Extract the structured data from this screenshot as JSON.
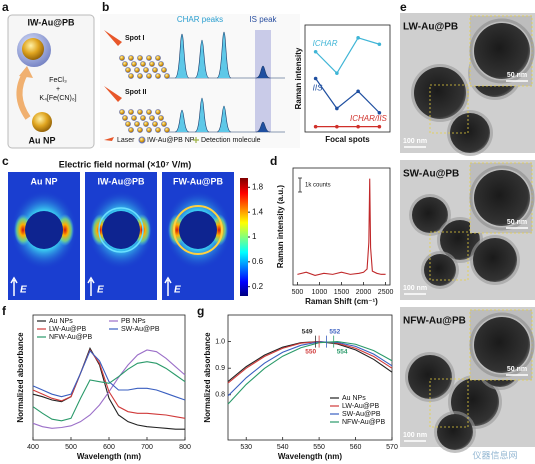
{
  "panel_labels": [
    "a",
    "b",
    "c",
    "d",
    "e",
    "f",
    "g"
  ],
  "a": {
    "top": "IW-Au@PB",
    "reagent1": "FeCl₃",
    "plus": "+",
    "reagent2": "K₄[Fe(CN)₆]",
    "bottom": "Au NP"
  },
  "b": {
    "char_peaks": "CHAR peaks",
    "is_peak": "IS peak",
    "spot1": "Spot I",
    "spot2": "Spot II",
    "legend": [
      "Laser",
      "IW-Au@PB NP",
      "Detection molecule"
    ]
  },
  "c": {
    "title": "Electric field normal (×10⁷ V/m)",
    "maps": [
      "Au NP",
      "IW-Au@PB",
      "FW-Au@PB"
    ],
    "field": "E"
  },
  "e": {
    "images": [
      {
        "label": "LW-Au@PB",
        "scale_inset": "50 nm",
        "scale_main": "100 nm"
      },
      {
        "label": "SW-Au@PB",
        "scale_inset": "50 nm",
        "scale_main": "100 nm"
      },
      {
        "label": "NFW-Au@PB",
        "scale_inset": "50 nm",
        "scale_main": "100 nm"
      }
    ]
  },
  "watermark": "仪器信息网",
  "chart_data": [
    {
      "type": "line",
      "y_label": "Raman intensity",
      "x_label": "Focal spots",
      "series": [
        {
          "name": "ICHAR",
          "color": "#3fb5d6",
          "values": [
            0.75,
            0.55,
            0.88,
            0.82
          ]
        },
        {
          "name": "IIS",
          "color": "#1f4fa0",
          "values": [
            0.5,
            0.22,
            0.38,
            0.18
          ]
        },
        {
          "name": "ICHAR/IIS",
          "color": "#d0302a",
          "values": [
            0.05,
            0.05,
            0.05,
            0.05
          ]
        }
      ],
      "ylim": [
        0,
        1
      ]
    },
    {
      "type": "colorbar",
      "ylim": [
        0.05,
        1.95
      ],
      "yticks": [
        1.8,
        1.4,
        1,
        0.6,
        0.2
      ]
    },
    {
      "type": "line",
      "y_label": "Raman intensity (a.u.)",
      "x_label": "Raman Shift (cm⁻¹)",
      "scale_bar": "1k counts",
      "x": [
        500,
        700,
        900,
        1100,
        1300,
        1500,
        1700,
        1900,
        2000,
        2080,
        2120,
        2140,
        2160,
        2200,
        2300,
        2400,
        2500
      ],
      "series": [
        {
          "color": "#c0282a",
          "values": [
            0.1,
            0.12,
            0.09,
            0.11,
            0.1,
            0.12,
            0.1,
            0.11,
            0.12,
            0.15,
            0.4,
            1.0,
            0.35,
            0.13,
            0.11,
            0.1,
            0.1
          ]
        }
      ],
      "xlim": [
        400,
        2600
      ],
      "xticks": [
        500,
        1000,
        1500,
        2000,
        2500
      ],
      "ylim": [
        0,
        1.1
      ]
    },
    {
      "type": "line",
      "y_label": "Normalized absorbance",
      "x_label": "Wavelength (nm)",
      "x": [
        400,
        425,
        450,
        475,
        500,
        525,
        550,
        575,
        600,
        625,
        650,
        675,
        700,
        725,
        750,
        775,
        800
      ],
      "series": [
        {
          "name": "Au NPs",
          "color": "#222222",
          "values": [
            0.45,
            0.42,
            0.38,
            0.36,
            0.42,
            0.7,
            1.0,
            0.8,
            0.4,
            0.2,
            0.12,
            0.08,
            0.06,
            0.05,
            0.04,
            0.03,
            0.03
          ]
        },
        {
          "name": "PB NPs",
          "color": "#9b6fc8",
          "values": [
            0.1,
            0.06,
            0.04,
            0.05,
            0.07,
            0.12,
            0.2,
            0.32,
            0.48,
            0.65,
            0.8,
            0.92,
            0.98,
            0.96,
            0.88,
            0.78,
            0.68
          ]
        },
        {
          "name": "LW-Au@PB",
          "color": "#d03a3a",
          "values": [
            0.5,
            0.45,
            0.4,
            0.37,
            0.42,
            0.7,
            0.98,
            0.82,
            0.48,
            0.3,
            0.24,
            0.22,
            0.22,
            0.21,
            0.2,
            0.18,
            0.16
          ]
        },
        {
          "name": "SW-Au@PB",
          "color": "#3a5fc0",
          "values": [
            0.55,
            0.5,
            0.45,
            0.42,
            0.45,
            0.7,
            0.97,
            0.85,
            0.6,
            0.5,
            0.5,
            0.52,
            0.52,
            0.5,
            0.46,
            0.42,
            0.38
          ]
        },
        {
          "name": "NFW-Au@PB",
          "color": "#2a9a6a",
          "values": [
            0.3,
            0.22,
            0.15,
            0.13,
            0.16,
            0.4,
            0.62,
            0.6,
            0.58,
            0.66,
            0.75,
            0.82,
            0.84,
            0.82,
            0.76,
            0.68,
            0.6
          ]
        }
      ],
      "xlim": [
        400,
        800
      ],
      "xticks": [
        400,
        500,
        600,
        700,
        800
      ],
      "ylim": [
        -0.1,
        1.4
      ]
    },
    {
      "type": "line",
      "y_label": "Normalized absorbance",
      "x_label": "Wavelength (nm)",
      "x": [
        525,
        530,
        535,
        540,
        545,
        550,
        555,
        560,
        565,
        570
      ],
      "series": [
        {
          "name": "Au NPs",
          "color": "#222222",
          "values": [
            0.85,
            0.906,
            0.949,
            0.979,
            0.996,
            1.0,
            0.991,
            0.969,
            0.933,
            0.885
          ]
        },
        {
          "name": "LW-Au@PB",
          "color": "#d03a3a",
          "values": [
            0.844,
            0.9,
            0.944,
            0.975,
            0.994,
            1.0,
            0.994,
            0.975,
            0.944,
            0.9
          ]
        },
        {
          "name": "SW-Au@PB",
          "color": "#3a5fc0",
          "values": [
            0.796,
            0.864,
            0.919,
            0.96,
            0.986,
            0.999,
            0.997,
            0.982,
            0.953,
            0.909
          ]
        },
        {
          "name": "NFW-Au@PB",
          "color": "#2a9a6a",
          "values": [
            0.765,
            0.839,
            0.899,
            0.945,
            0.977,
            0.996,
            1.0,
            0.99,
            0.966,
            0.928
          ]
        }
      ],
      "annotations": [
        {
          "value": 549,
          "color": "#333333"
        },
        {
          "value": 552,
          "color": "#3a5fc0"
        },
        {
          "value": 550,
          "color": "#d03a3a"
        },
        {
          "value": 554,
          "color": "#2a9a6a"
        }
      ],
      "xlim": [
        525,
        570
      ],
      "xticks": [
        530,
        540,
        550,
        560,
        570
      ],
      "ylim": [
        0.63,
        1.1
      ],
      "yticks": [
        0.8,
        0.9,
        {
          "value": 1,
          "label": "1.0"
        }
      ]
    }
  ]
}
